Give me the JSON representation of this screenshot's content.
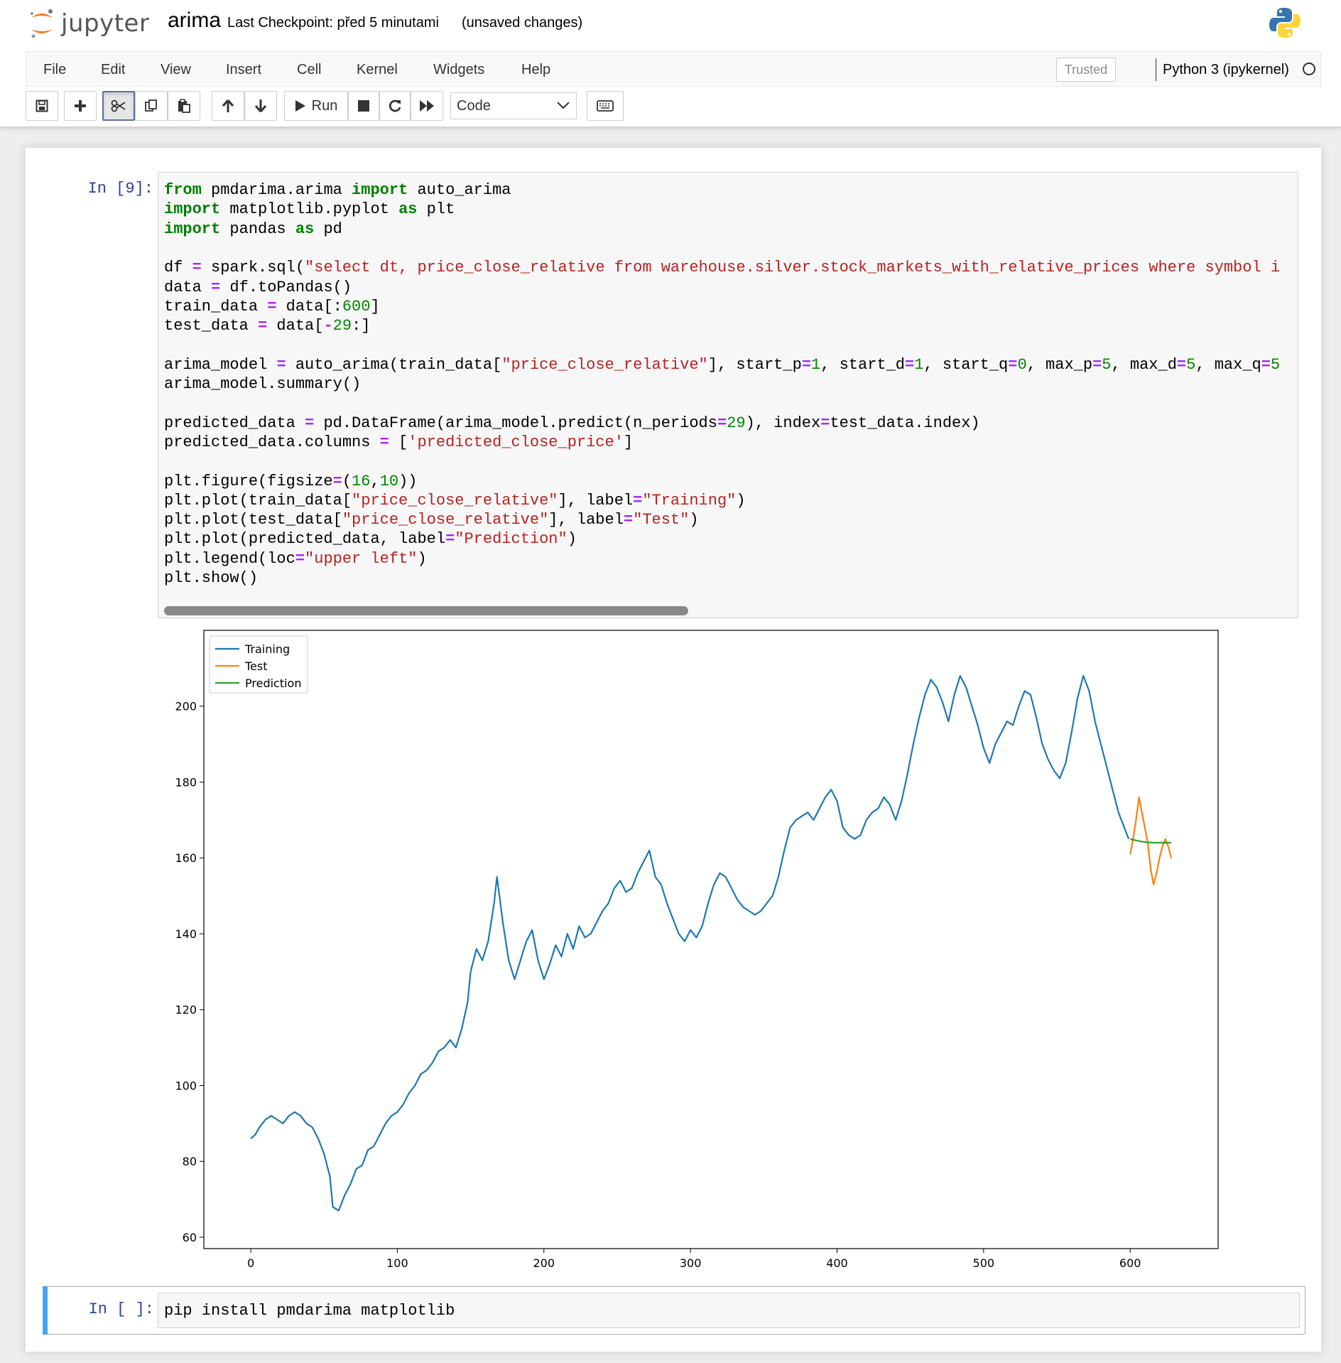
{
  "header": {
    "logo_text": "jupyter",
    "notebook_name": "arima",
    "checkpoint": "Last Checkpoint: před 5 minutami",
    "autosave_status": "(unsaved changes)"
  },
  "menubar": {
    "items": [
      "File",
      "Edit",
      "View",
      "Insert",
      "Cell",
      "Kernel",
      "Widgets",
      "Help"
    ],
    "trusted_label": "Trusted",
    "kernel_name": "Python 3 (ipykernel)"
  },
  "toolbar": {
    "run_label": "Run",
    "cell_type": "Code",
    "icons": [
      "save-icon",
      "plus-icon",
      "cut-icon",
      "copy-icon",
      "paste-icon",
      "arrow-up-icon",
      "arrow-down-icon",
      "play-icon",
      "stop-icon",
      "restart-icon",
      "fast-forward-icon",
      "chevron-down-icon",
      "keyboard-icon"
    ]
  },
  "cells": [
    {
      "prompt": "In [9]:",
      "code": [
        "from pmdarima.arima import auto_arima",
        "import matplotlib.pyplot as plt",
        "import pandas as pd",
        "",
        "df = spark.sql(\"select dt, price_close_relative from warehouse.silver.stock_markets_with_relative_prices where symbol i",
        "data = df.toPandas()",
        "train_data = data[:600]",
        "test_data = data[-29:]",
        "",
        "arima_model = auto_arima(train_data[\"price_close_relative\"], start_p=1, start_d=1, start_q=0, max_p=5, max_d=5, max_q=5",
        "arima_model.summary()",
        "",
        "predicted_data = pd.DataFrame(arima_model.predict(n_periods=29), index=test_data.index)",
        "predicted_data.columns = ['predicted_close_price']",
        "",
        "plt.figure(figsize=(16,10))",
        "plt.plot(train_data[\"price_close_relative\"], label=\"Training\")",
        "plt.plot(test_data[\"price_close_relative\"], label=\"Test\")",
        "plt.plot(predicted_data, label=\"Prediction\")",
        "plt.legend(loc=\"upper left\")",
        "plt.show()"
      ]
    },
    {
      "prompt": "In [ ]:",
      "code": [
        "pip install pmdarima matplotlib"
      ]
    }
  ],
  "chart_data": {
    "type": "line",
    "title": "",
    "xlabel": "",
    "ylabel": "",
    "xlim": [
      -32,
      660
    ],
    "ylim": [
      57,
      220
    ],
    "xticks": [
      0,
      100,
      200,
      300,
      400,
      500,
      600
    ],
    "yticks": [
      60,
      80,
      100,
      120,
      140,
      160,
      180,
      200
    ],
    "legend_position": "upper-left",
    "grid": false,
    "series": [
      {
        "name": "Training",
        "color": "#1f77b4",
        "x": [
          0,
          3,
          6,
          10,
          14,
          18,
          22,
          26,
          30,
          34,
          38,
          42,
          46,
          50,
          54,
          56,
          60,
          64,
          68,
          72,
          76,
          80,
          84,
          88,
          92,
          96,
          100,
          104,
          108,
          112,
          116,
          120,
          124,
          128,
          132,
          136,
          140,
          144,
          148,
          150,
          154,
          158,
          162,
          166,
          168,
          172,
          176,
          180,
          184,
          188,
          192,
          196,
          200,
          204,
          208,
          212,
          216,
          220,
          224,
          228,
          232,
          236,
          240,
          244,
          248,
          252,
          256,
          260,
          264,
          268,
          272,
          276,
          280,
          284,
          288,
          292,
          296,
          300,
          304,
          308,
          312,
          316,
          320,
          324,
          328,
          332,
          336,
          340,
          344,
          348,
          352,
          356,
          360,
          364,
          368,
          372,
          376,
          380,
          384,
          388,
          392,
          396,
          400,
          404,
          408,
          412,
          416,
          420,
          424,
          428,
          432,
          436,
          440,
          444,
          448,
          452,
          456,
          460,
          464,
          468,
          472,
          476,
          480,
          484,
          488,
          492,
          496,
          500,
          504,
          508,
          512,
          516,
          520,
          524,
          528,
          532,
          536,
          540,
          544,
          548,
          552,
          556,
          560,
          564,
          568,
          572,
          576,
          580,
          584,
          588,
          592,
          596,
          599
        ],
        "values": [
          86,
          87,
          89,
          91,
          92,
          91,
          90,
          92,
          93,
          92,
          90,
          89,
          86,
          82,
          76,
          68,
          67,
          71,
          74,
          78,
          79,
          83,
          84,
          87,
          90,
          92,
          93,
          95,
          98,
          100,
          103,
          104,
          106,
          109,
          110,
          112,
          110,
          115,
          122,
          130,
          136,
          133,
          138,
          148,
          155,
          143,
          133,
          128,
          133,
          138,
          141,
          133,
          128,
          132,
          137,
          134,
          140,
          136,
          142,
          139,
          140,
          143,
          146,
          148,
          152,
          154,
          151,
          152,
          156,
          159,
          162,
          155,
          153,
          148,
          144,
          140,
          138,
          141,
          139,
          142,
          148,
          153,
          156,
          155,
          152,
          149,
          147,
          146,
          145,
          146,
          148,
          150,
          155,
          162,
          168,
          170,
          171,
          172,
          170,
          173,
          176,
          178,
          175,
          168,
          166,
          165,
          166,
          170,
          172,
          173,
          176,
          174,
          170,
          175,
          182,
          190,
          197,
          203,
          207,
          205,
          201,
          196,
          203,
          208,
          205,
          200,
          195,
          189,
          185,
          190,
          193,
          196,
          195,
          200,
          204,
          203,
          197,
          190,
          186,
          183,
          181,
          185,
          193,
          202,
          208,
          204,
          196,
          190,
          184,
          178,
          172,
          168,
          165
        ]
      },
      {
        "name": "Test",
        "color": "#ff7f0e",
        "x": [
          600,
          602,
          604,
          606,
          608,
          610,
          612,
          614,
          616,
          618,
          620,
          622,
          624,
          626,
          628
        ],
        "values": [
          161,
          165,
          170,
          176,
          172,
          168,
          164,
          157,
          153,
          156,
          160,
          163,
          165,
          163,
          160
        ]
      },
      {
        "name": "Prediction",
        "color": "#2ca02c",
        "x": [
          600,
          604,
          608,
          612,
          616,
          620,
          624,
          628
        ],
        "values": [
          165,
          164.6,
          164.3,
          164.1,
          164,
          164,
          164,
          164
        ]
      }
    ]
  }
}
